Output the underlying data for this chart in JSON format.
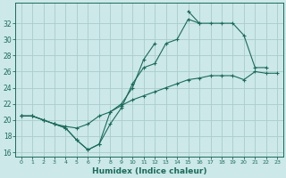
{
  "xlabel": "Humidex (Indice chaleur)",
  "x": [
    0,
    1,
    2,
    3,
    4,
    5,
    6,
    7,
    8,
    9,
    10,
    11,
    12,
    13,
    14,
    15,
    16,
    17,
    18,
    19,
    20,
    21,
    22,
    23
  ],
  "line1": [
    20.5,
    20.5,
    20.0,
    19.5,
    19.0,
    17.5,
    16.3,
    17.0,
    19.5,
    21.5,
    24.5,
    26.5,
    27.0,
    29.5,
    30.0,
    32.5,
    32.0,
    32.0,
    32.0,
    32.0,
    30.5,
    26.5,
    26.5,
    null
  ],
  "line2": [
    20.5,
    20.5,
    20.0,
    19.5,
    19.0,
    17.5,
    16.3,
    17.0,
    21.0,
    22.0,
    24.0,
    27.5,
    29.5,
    null,
    null,
    33.5,
    32.0,
    null,
    null,
    null,
    null,
    null,
    null,
    null
  ],
  "line3": [
    20.5,
    20.5,
    20.0,
    19.5,
    19.2,
    19.0,
    19.5,
    20.5,
    21.0,
    21.8,
    22.5,
    23.0,
    23.5,
    24.0,
    24.5,
    25.0,
    25.2,
    25.5,
    25.5,
    25.5,
    25.0,
    26.0,
    25.8,
    25.8
  ],
  "ylim": [
    15.5,
    34.5
  ],
  "xlim": [
    -0.5,
    23.5
  ],
  "bg_color": "#cce8e8",
  "grid_color": "#aacccc",
  "line_color": "#1a6b5a",
  "yticks": [
    16,
    18,
    20,
    22,
    24,
    26,
    28,
    30,
    32
  ],
  "xticks": [
    0,
    1,
    2,
    3,
    4,
    5,
    6,
    7,
    8,
    9,
    10,
    11,
    12,
    13,
    14,
    15,
    16,
    17,
    18,
    19,
    20,
    21,
    22,
    23
  ]
}
